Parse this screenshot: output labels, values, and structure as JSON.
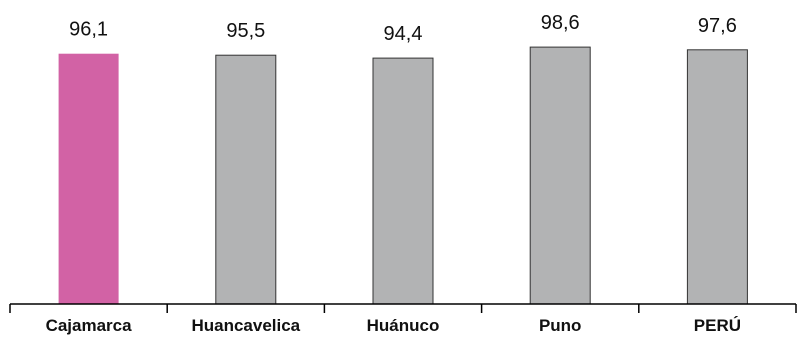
{
  "chart_data": {
    "type": "bar",
    "title": "",
    "xlabel": "",
    "ylabel": "",
    "categories": [
      "Cajamarca",
      "Huancavelica",
      "Huánuco",
      "Puno",
      "PERÚ"
    ],
    "values": [
      96.1,
      95.5,
      94.4,
      98.6,
      97.6
    ],
    "value_labels": [
      "96,1",
      "95,5",
      "94,4",
      "98,6",
      "97,6"
    ],
    "ylim": [
      0,
      100
    ],
    "grid": false,
    "legend": "none",
    "highlight_index": 0,
    "colors": {
      "highlight": "#d262a5",
      "default": "#b2b3b4",
      "outline": "#333333",
      "axis": "#000000"
    }
  }
}
